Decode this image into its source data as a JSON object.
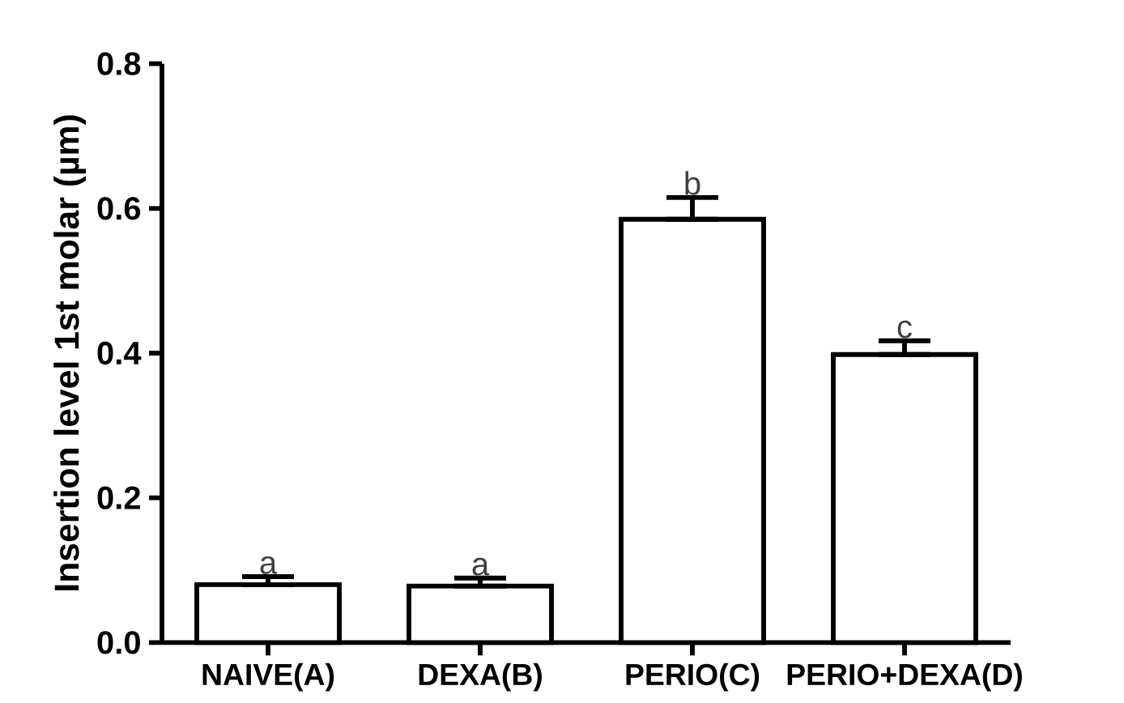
{
  "chart_data": {
    "type": "bar",
    "ylabel": "Insertion level 1st molar (µm)",
    "categories": [
      "NAIVE(A)",
      "DEXA(B)",
      "PERIO(C)",
      "PERIO+DEXA(D)"
    ],
    "values": [
      0.08,
      0.078,
      0.585,
      0.398
    ],
    "errors": [
      [
        0.08,
        0.091
      ],
      [
        0.078,
        0.089
      ],
      [
        0.585,
        0.615
      ],
      [
        0.398,
        0.417
      ]
    ],
    "color": "#ffffff",
    "ylim": [
      0,
      0.8
    ],
    "yticks": [
      {
        "value": 0,
        "label": "0.0"
      },
      0.2,
      0.4,
      0.6,
      0.8
    ],
    "annotations": [
      "a",
      "a",
      "b",
      "c"
    ]
  }
}
